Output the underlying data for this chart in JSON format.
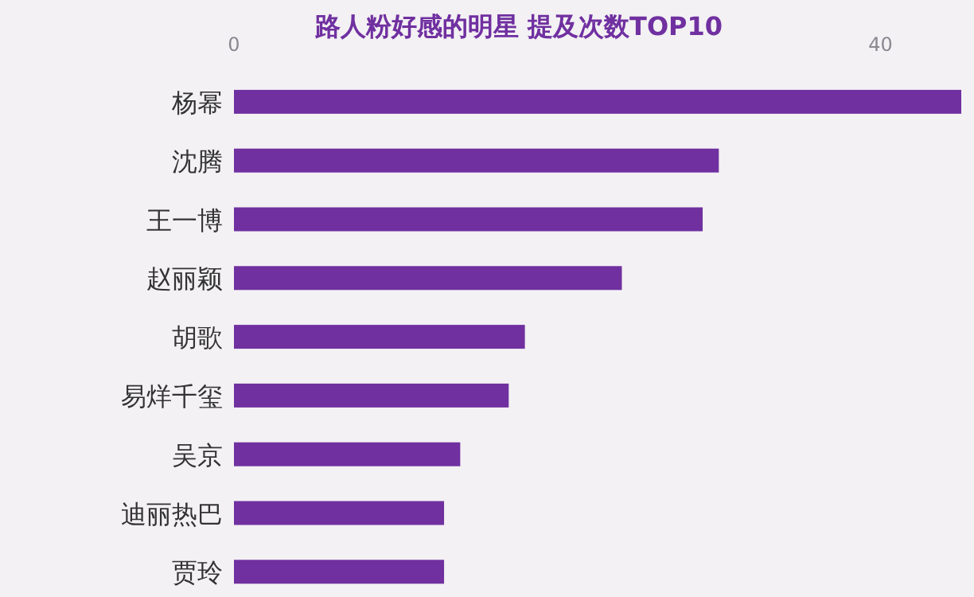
{
  "chart_data": {
    "type": "bar",
    "orientation": "horizontal",
    "title": "路人粉好感的明星 提及次数TOP10",
    "categories": [
      "杨幂",
      "沈腾",
      "王一博",
      "赵丽颖",
      "胡歌",
      "易烊千玺",
      "吴京",
      "迪丽热巴",
      "贾玲"
    ],
    "values": [
      45,
      30,
      29,
      24,
      18,
      17,
      14,
      13,
      13
    ],
    "color": "#7030a0",
    "xlim": [
      0,
      45
    ],
    "xticks": [
      0,
      40
    ],
    "grid": false,
    "legend": false
  }
}
